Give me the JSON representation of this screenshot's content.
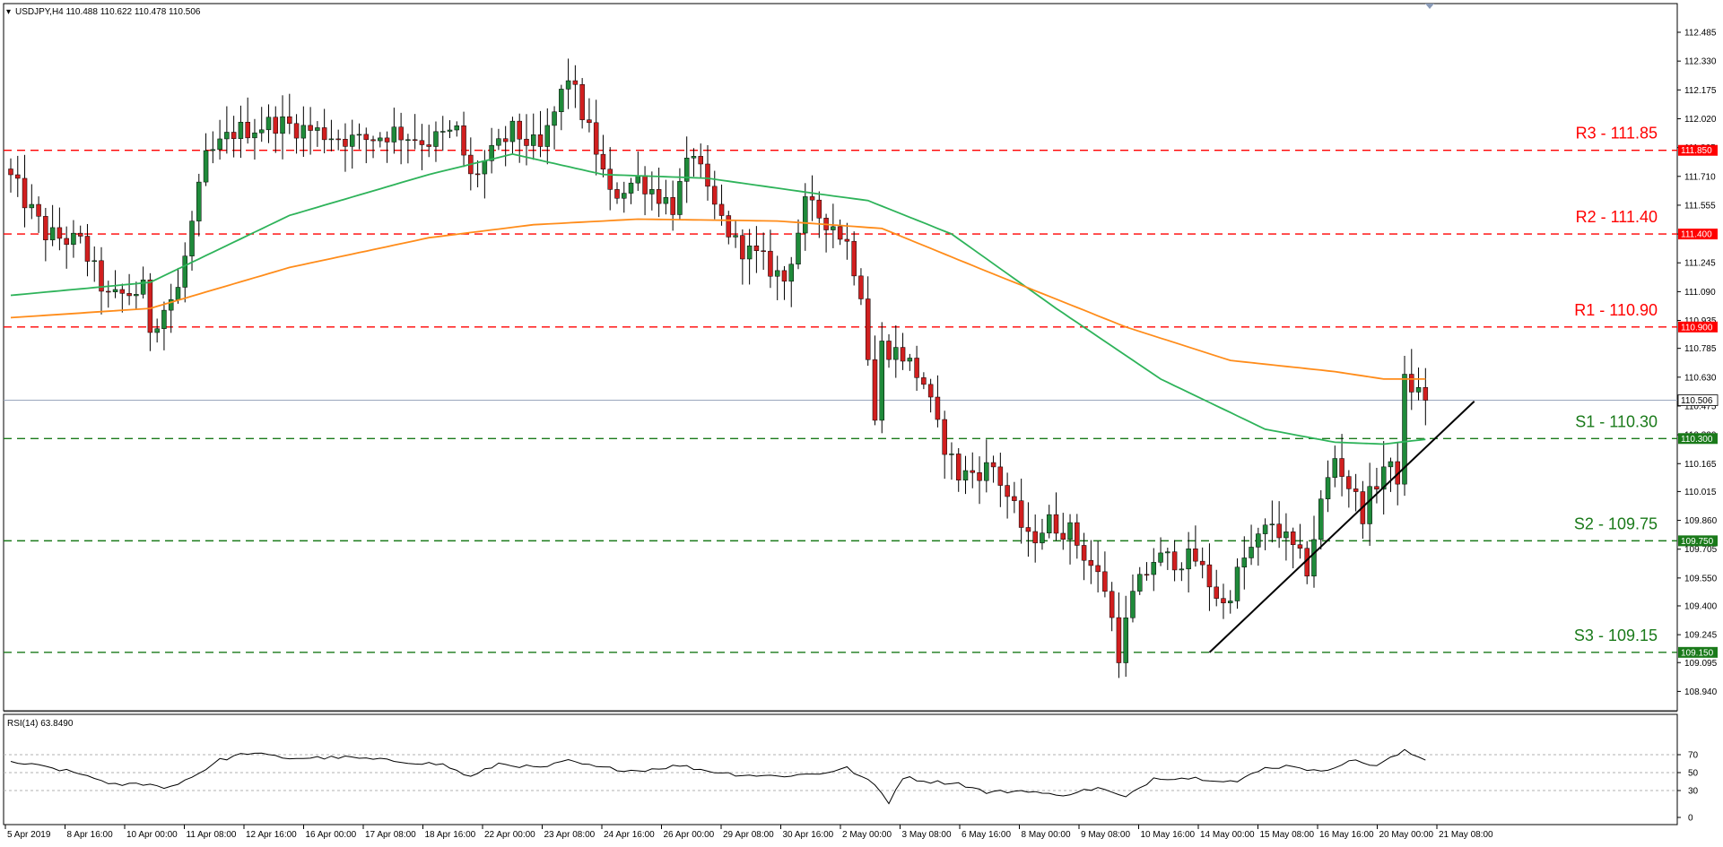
{
  "chart_data": [
    {
      "type": "candlestick",
      "header": "USDJPY,H4  110.488 110.622 110.478 110.506",
      "ylim": [
        108.86,
        112.62
      ],
      "y_ticks": [
        "112.485",
        "112.330",
        "112.175",
        "112.020",
        "111.865",
        "111.710",
        "111.555",
        "111.400",
        "111.245",
        "111.090",
        "110.935",
        "110.785",
        "110.630",
        "110.475",
        "110.320",
        "110.165",
        "110.015",
        "109.860",
        "109.705",
        "109.550",
        "109.400",
        "109.245",
        "109.095",
        "108.940"
      ],
      "x_ticks": [
        "5 Apr 2019",
        "8 Apr 16:00",
        "10 Apr 00:00",
        "11 Apr 08:00",
        "12 Apr 16:00",
        "16 Apr 00:00",
        "17 Apr 08:00",
        "18 Apr 16:00",
        "22 Apr 00:00",
        "23 Apr 08:00",
        "24 Apr 16:00",
        "26 Apr 00:00",
        "29 Apr 08:00",
        "30 Apr 16:00",
        "2 May 00:00",
        "3 May 08:00",
        "6 May 16:00",
        "8 May 00:00",
        "9 May 08:00",
        "10 May 16:00",
        "14 May 00:00",
        "15 May 08:00",
        "16 May 16:00",
        "20 May 00:00",
        "21 May 08:00"
      ],
      "current_price": "110.506",
      "levels": [
        {
          "label": "R3 - 111.85",
          "tag": "111.850",
          "value": 111.85,
          "color": "#ff0000",
          "type": "resistance"
        },
        {
          "label": "R2 - 111.40",
          "tag": "111.400",
          "value": 111.4,
          "color": "#ff0000",
          "type": "resistance"
        },
        {
          "label": "R1 - 110.90",
          "tag": "110.900",
          "value": 110.9,
          "color": "#ff0000",
          "type": "resistance"
        },
        {
          "label": "S1 - 110.30",
          "tag": "110.300",
          "value": 110.3,
          "color": "#1a7a1a",
          "type": "support"
        },
        {
          "label": "S2 - 109.75",
          "tag": "109.750",
          "value": 109.75,
          "color": "#1a7a1a",
          "type": "support"
        },
        {
          "label": "S3 - 109.15",
          "tag": "109.150",
          "value": 109.15,
          "color": "#1a7a1a",
          "type": "support"
        }
      ],
      "close_anchors": [
        [
          0,
          111.7
        ],
        [
          5,
          111.4
        ],
        [
          10,
          111.35
        ],
        [
          14,
          111.05
        ],
        [
          19,
          111.1
        ],
        [
          20,
          110.9
        ],
        [
          24,
          111.1
        ],
        [
          28,
          111.8
        ],
        [
          32,
          111.95
        ],
        [
          38,
          112.0
        ],
        [
          44,
          111.95
        ],
        [
          50,
          111.9
        ],
        [
          55,
          111.95
        ],
        [
          60,
          111.9
        ],
        [
          64,
          111.95
        ],
        [
          66,
          111.7
        ],
        [
          72,
          111.95
        ],
        [
          76,
          111.85
        ],
        [
          80,
          112.25
        ],
        [
          84,
          111.85
        ],
        [
          86,
          111.6
        ],
        [
          90,
          111.7
        ],
        [
          95,
          111.55
        ],
        [
          98,
          111.85
        ],
        [
          100,
          111.6
        ],
        [
          104,
          111.35
        ],
        [
          108,
          111.25
        ],
        [
          111,
          111.15
        ],
        [
          114,
          111.55
        ],
        [
          118,
          111.45
        ],
        [
          120,
          111.35
        ],
        [
          122,
          111.1
        ],
        [
          124,
          110.4
        ],
        [
          125,
          110.8
        ],
        [
          128,
          110.75
        ],
        [
          131,
          110.6
        ],
        [
          133,
          110.35
        ],
        [
          136,
          110.1
        ],
        [
          141,
          110.15
        ],
        [
          146,
          109.75
        ],
        [
          149,
          109.85
        ],
        [
          152,
          109.8
        ],
        [
          157,
          109.5
        ],
        [
          159,
          109.15
        ],
        [
          161,
          109.45
        ],
        [
          164,
          109.65
        ],
        [
          170,
          109.65
        ],
        [
          174,
          109.4
        ],
        [
          177,
          109.65
        ],
        [
          181,
          109.85
        ],
        [
          186,
          109.6
        ],
        [
          188,
          109.95
        ],
        [
          190,
          110.2
        ],
        [
          194,
          109.9
        ],
        [
          197,
          110.15
        ],
        [
          199,
          110.1
        ],
        [
          200,
          110.6
        ],
        [
          202,
          110.55
        ],
        [
          203,
          110.506
        ]
      ],
      "series": [
        {
          "name": "MA fast",
          "color": "#2eb35a",
          "anchors": [
            [
              0,
              111.07
            ],
            [
              20,
              111.14
            ],
            [
              40,
              111.5
            ],
            [
              60,
              111.72
            ],
            [
              72,
              111.83
            ],
            [
              85,
              111.72
            ],
            [
              100,
              111.7
            ],
            [
              115,
              111.62
            ],
            [
              123,
              111.58
            ],
            [
              135,
              111.4
            ],
            [
              150,
              111.0
            ],
            [
              165,
              110.62
            ],
            [
              180,
              110.35
            ],
            [
              190,
              110.28
            ],
            [
              197,
              110.27
            ],
            [
              204,
              110.3
            ]
          ]
        },
        {
          "name": "MA slow",
          "color": "#ff8c1a",
          "anchors": [
            [
              0,
              110.95
            ],
            [
              20,
              111.0
            ],
            [
              40,
              111.22
            ],
            [
              60,
              111.38
            ],
            [
              75,
              111.45
            ],
            [
              90,
              111.48
            ],
            [
              110,
              111.47
            ],
            [
              125,
              111.43
            ],
            [
              140,
              111.2
            ],
            [
              160,
              110.9
            ],
            [
              175,
              110.72
            ],
            [
              190,
              110.66
            ],
            [
              197,
              110.62
            ],
            [
              204,
              110.62
            ]
          ]
        }
      ],
      "trendline": {
        "from_bar": 172,
        "from_price": 109.15,
        "to_bar": 210,
        "to_price": 110.5
      },
      "candle_count": 204
    },
    {
      "type": "line",
      "header": "RSI(14) 63.8490",
      "ylim": [
        0,
        100
      ],
      "y_ticks": [
        "70",
        "50",
        "30",
        "0"
      ],
      "guides": [
        70,
        50,
        30
      ],
      "series": [
        {
          "name": "RSI(14)",
          "anchors": [
            [
              0,
              62
            ],
            [
              6,
              55
            ],
            [
              12,
              45
            ],
            [
              14,
              36
            ],
            [
              20,
              38
            ],
            [
              22,
              32
            ],
            [
              26,
              45
            ],
            [
              30,
              64
            ],
            [
              34,
              72
            ],
            [
              40,
              66
            ],
            [
              48,
              67
            ],
            [
              55,
              63
            ],
            [
              62,
              59
            ],
            [
              66,
              45
            ],
            [
              70,
              60
            ],
            [
              76,
              55
            ],
            [
              80,
              63
            ],
            [
              84,
              56
            ],
            [
              90,
              52
            ],
            [
              96,
              58
            ],
            [
              100,
              52
            ],
            [
              104,
              48
            ],
            [
              110,
              46
            ],
            [
              116,
              49
            ],
            [
              120,
              55
            ],
            [
              124,
              36
            ],
            [
              126,
              17
            ],
            [
              128,
              45
            ],
            [
              132,
              40
            ],
            [
              136,
              38
            ],
            [
              140,
              28
            ],
            [
              146,
              30
            ],
            [
              150,
              24
            ],
            [
              156,
              33
            ],
            [
              160,
              22
            ],
            [
              164,
              44
            ],
            [
              170,
              44
            ],
            [
              176,
              40
            ],
            [
              180,
              55
            ],
            [
              184,
              58
            ],
            [
              188,
              50
            ],
            [
              192,
              64
            ],
            [
              196,
              58
            ],
            [
              198,
              66
            ],
            [
              200,
              74
            ],
            [
              203,
              64
            ]
          ]
        }
      ]
    }
  ]
}
